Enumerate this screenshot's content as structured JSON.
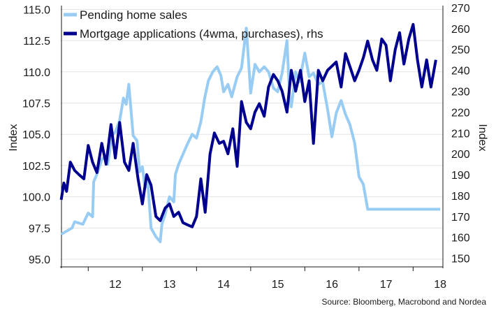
{
  "chart_data": {
    "type": "line",
    "source": "Source: Bloomberg, Macrobond and Nordea",
    "x_ticks": [
      "12",
      "13",
      "14",
      "15",
      "16",
      "17",
      "18"
    ],
    "y_left": {
      "label": "Index",
      "ticks": [
        "95.0",
        "97.5",
        "100.0",
        "102.5",
        "105.0",
        "107.5",
        "110.0",
        "112.5",
        "115.0"
      ],
      "ylim": [
        94.5,
        115.3
      ]
    },
    "y_right": {
      "label": "Index",
      "ticks": [
        "150",
        "160",
        "170",
        "180",
        "190",
        "200",
        "210",
        "220",
        "230",
        "240",
        "250",
        "260",
        "270"
      ],
      "ylim": [
        146.5,
        271
      ]
    },
    "grid": true,
    "legend_position": "top-left",
    "colors": {
      "pending": "#99ccf3",
      "mortgage": "#00008f"
    },
    "series": [
      {
        "name": "Pending home sales",
        "axis": "left",
        "x": [
          2011.5,
          2011.7,
          2011.75,
          2011.9,
          2012.0,
          2012.08,
          2012.1,
          2012.16,
          2012.2,
          2012.25,
          2012.33,
          2012.36,
          2012.44,
          2012.5,
          2012.58,
          2012.65,
          2012.7,
          2012.75,
          2012.83,
          2012.9,
          2012.95,
          2013.0,
          2013.05,
          2013.1,
          2013.16,
          2013.25,
          2013.33,
          2013.36,
          2013.42,
          2013.5,
          2013.58,
          2013.61,
          2013.67,
          2013.75,
          2013.83,
          2013.92,
          2014.0,
          2014.08,
          2014.15,
          2014.22,
          2014.3,
          2014.38,
          2014.45,
          2014.5,
          2014.58,
          2014.65,
          2014.75,
          2014.83,
          2014.92,
          2015.0,
          2015.08,
          2015.16,
          2015.25,
          2015.33,
          2015.42,
          2015.5,
          2015.58,
          2015.67,
          2015.72,
          2015.75,
          2015.83,
          2015.9,
          2016.0,
          2016.08,
          2016.16,
          2016.25,
          2016.33,
          2016.42,
          2016.5,
          2016.58,
          2016.67,
          2016.75,
          2016.83,
          2016.92,
          2017.0,
          2017.08,
          2017.16,
          2017.25,
          2017.33,
          2017.42,
          2017.5,
          2017.58,
          2017.67,
          2017.75,
          2017.83,
          2017.92,
          2018.0,
          2018.08,
          2018.16,
          2018.25,
          2018.33,
          2018.42,
          2018.5
        ],
        "y": [
          97.0,
          97.5,
          98.0,
          97.8,
          98.7,
          98.4,
          101.2,
          101.8,
          102.3,
          103.0,
          103.3,
          102.6,
          104.9,
          105.2,
          106.1,
          107.9,
          107.4,
          109.0,
          104.9,
          104.5,
          102.0,
          102.4,
          100.7,
          101.2,
          97.5,
          96.8,
          96.4,
          97.8,
          98.6,
          100.0,
          99.6,
          101.8,
          102.6,
          103.4,
          104.2,
          105.0,
          104.7,
          106.0,
          107.9,
          109.3,
          110.0,
          110.4,
          109.7,
          108.4,
          109.0,
          108.0,
          109.6,
          110.3,
          113.5,
          108.3,
          110.6,
          110.0,
          110.4,
          110.0,
          108.7,
          108.4,
          109.9,
          112.5,
          107.9,
          107.2,
          110.0,
          109.2,
          111.5,
          109.6,
          109.9,
          109.0,
          109.2,
          107.0,
          104.8,
          106.7,
          107.7,
          106.6,
          105.8,
          104.3,
          101.6,
          101.0,
          99.0,
          99.0,
          99.0,
          99.0,
          99.0,
          99.0,
          99.0,
          99.0,
          99.0,
          99.0,
          99.0,
          99.0,
          99.0,
          99.0,
          99.0,
          99.0,
          99.0
        ]
      },
      {
        "name": "Mortgage applications (4wma, purchases), rhs",
        "axis": "right",
        "x": [
          2011.5,
          2011.55,
          2011.6,
          2011.67,
          2011.75,
          2011.83,
          2011.92,
          2012.0,
          2012.08,
          2012.16,
          2012.25,
          2012.33,
          2012.42,
          2012.5,
          2012.58,
          2012.67,
          2012.75,
          2012.83,
          2012.92,
          2013.0,
          2013.08,
          2013.16,
          2013.25,
          2013.33,
          2013.42,
          2013.5,
          2013.58,
          2013.67,
          2013.75,
          2013.83,
          2013.92,
          2014.0,
          2014.08,
          2014.16,
          2014.25,
          2014.33,
          2014.42,
          2014.5,
          2014.58,
          2014.67,
          2014.75,
          2014.83,
          2014.92,
          2015.0,
          2015.08,
          2015.16,
          2015.25,
          2015.33,
          2015.42,
          2015.5,
          2015.58,
          2015.67,
          2015.75,
          2015.83,
          2015.92,
          2016.0,
          2016.08,
          2016.16,
          2016.25,
          2016.33,
          2016.42,
          2016.5,
          2016.58,
          2016.67,
          2016.75,
          2016.83,
          2016.92,
          2017.0,
          2017.08,
          2017.16,
          2017.25,
          2017.33,
          2017.42,
          2017.5,
          2017.58,
          2017.67,
          2017.75,
          2017.83,
          2017.92,
          2018.0,
          2018.08,
          2018.16,
          2018.25,
          2018.33,
          2018.42
        ],
        "y": [
          178,
          186,
          182,
          196,
          192,
          190,
          188,
          204,
          196,
          191,
          205,
          195,
          214,
          198,
          215,
          196,
          192,
          205,
          188,
          176,
          190,
          185,
          170,
          168,
          174,
          176,
          170,
          172,
          167,
          166,
          165,
          170,
          188,
          172,
          200,
          210,
          205,
          206,
          200,
          212,
          194,
          225,
          215,
          212,
          220,
          224,
          218,
          232,
          238,
          235,
          230,
          220,
          240,
          230,
          240,
          225,
          235,
          205,
          240,
          235,
          240,
          242,
          244,
          232,
          248,
          242,
          235,
          240,
          246,
          254,
          245,
          240,
          255,
          252,
          235,
          250,
          258,
          243,
          255,
          262,
          245,
          232,
          245,
          232,
          245
        ]
      }
    ]
  }
}
